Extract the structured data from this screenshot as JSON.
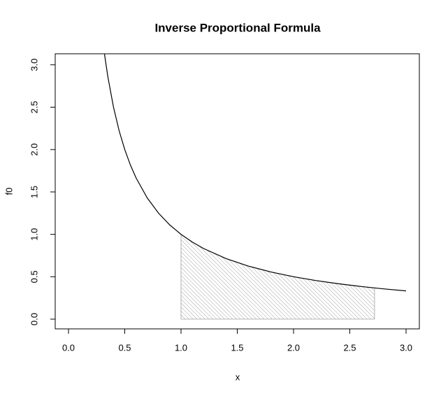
{
  "chart_data": {
    "type": "line",
    "title": "Inverse Proportional Formula",
    "xlabel": "x",
    "ylabel": "f0",
    "curve": {
      "color": "#000000",
      "x": [
        0.32,
        0.35,
        0.4,
        0.45,
        0.5,
        0.55,
        0.6,
        0.7,
        0.8,
        0.9,
        1,
        1.1,
        1.2,
        1.4,
        1.6,
        1.8,
        2,
        2.2,
        2.4,
        2.6,
        2.8,
        3
      ],
      "values": [
        3.125,
        2.857,
        2.5,
        2.222,
        2,
        1.818,
        1.667,
        1.429,
        1.25,
        1.111,
        1,
        0.909,
        0.833,
        0.714,
        0.625,
        0.556,
        0.5,
        0.455,
        0.417,
        0.385,
        0.357,
        0.333
      ]
    },
    "shaded": {
      "color": "#a0a0a0",
      "x": [
        1,
        1.1,
        1.2,
        1.4,
        1.6,
        1.8,
        2,
        2.2,
        2.4,
        2.6,
        2.72
      ],
      "values": [
        1,
        0.909,
        0.833,
        0.714,
        0.625,
        0.556,
        0.5,
        0.455,
        0.417,
        0.385,
        0.368
      ]
    },
    "xlim": [
      -0.118,
      3.118
    ],
    "ylim": [
      -0.115,
      3.13
    ],
    "xticks": [
      {
        "value": 0,
        "label": "0.0"
      },
      {
        "value": 0.5,
        "label": "0.5"
      },
      {
        "value": 1,
        "label": "1.0"
      },
      {
        "value": 1.5,
        "label": "1.5"
      },
      {
        "value": 2,
        "label": "2.0"
      },
      {
        "value": 2.5,
        "label": "2.5"
      },
      {
        "value": 3,
        "label": "3.0"
      }
    ],
    "yticks": [
      {
        "value": 0,
        "label": "0.0"
      },
      {
        "value": 0.5,
        "label": "0.5"
      },
      {
        "value": 1,
        "label": "1.0"
      },
      {
        "value": 1.5,
        "label": "1.5"
      },
      {
        "value": 2,
        "label": "2.0"
      },
      {
        "value": 2.5,
        "label": "2.5"
      },
      {
        "value": 3,
        "label": "3.0"
      }
    ]
  }
}
